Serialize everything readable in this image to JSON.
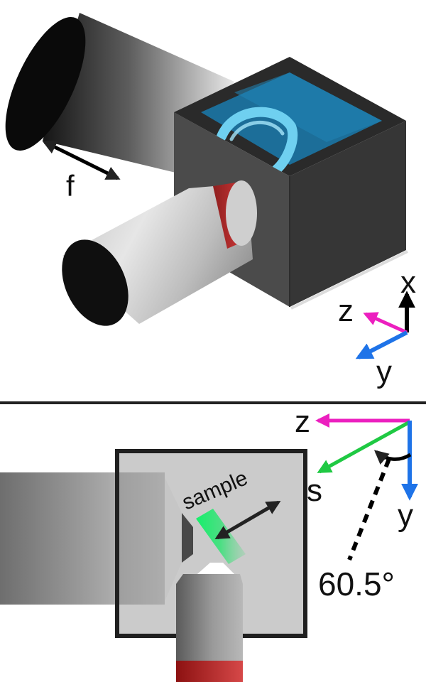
{
  "top_panel": {
    "label_f": "f",
    "axes": {
      "x": "x",
      "y": "y",
      "z": "z"
    }
  },
  "bottom_panel": {
    "sample_label": "sample",
    "axes": {
      "z": "z",
      "s": "s",
      "y": "y"
    },
    "angle_label": "60.5°"
  },
  "colors": {
    "water": "#1f6f9a",
    "chamber": "#3a3a3a",
    "ring": "#6fd0f0",
    "band": "#c0302f",
    "sample": "#1ee86a",
    "axis_x": "#000000",
    "axis_y": "#1e73e8",
    "axis_z": "#ec1fbf",
    "axis_s": "#1fc943"
  }
}
